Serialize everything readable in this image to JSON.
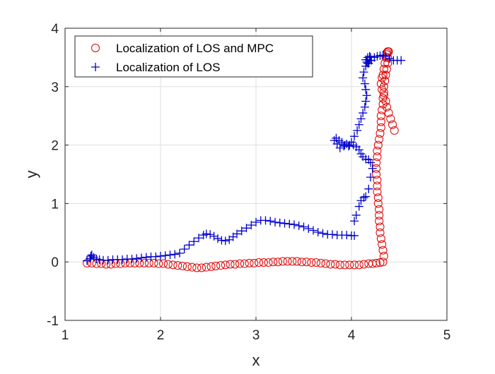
{
  "chart_data": {
    "type": "scatter",
    "title": "",
    "xlabel": "x",
    "ylabel": "y",
    "xlim": [
      1,
      5
    ],
    "ylim": [
      -1,
      4
    ],
    "xticks": [
      "1",
      "2",
      "3",
      "4",
      "5"
    ],
    "yticks": [
      "-1",
      "0",
      "1",
      "2",
      "3",
      "4"
    ],
    "grid": true,
    "legend_position": "top-left",
    "series": [
      {
        "name": "Localization of LOS and MPC",
        "marker": "circle",
        "color": "#e00000",
        "x": [
          1.23,
          1.28,
          1.33,
          1.38,
          1.43,
          1.48,
          1.53,
          1.58,
          1.63,
          1.68,
          1.73,
          1.78,
          1.83,
          1.88,
          1.93,
          1.98,
          2.03,
          2.08,
          2.13,
          2.18,
          2.23,
          2.28,
          2.33,
          2.38,
          2.43,
          2.48,
          2.53,
          2.58,
          2.63,
          2.68,
          2.73,
          2.78,
          2.83,
          2.88,
          2.93,
          2.98,
          3.03,
          3.08,
          3.13,
          3.18,
          3.23,
          3.28,
          3.33,
          3.38,
          3.43,
          3.48,
          3.53,
          3.58,
          3.63,
          3.68,
          3.73,
          3.78,
          3.83,
          3.88,
          3.93,
          3.98,
          4.03,
          4.08,
          4.13,
          4.18,
          4.22,
          4.26,
          4.3,
          4.33,
          4.34,
          4.33,
          4.32,
          4.31,
          4.3,
          4.3,
          4.29,
          4.29,
          4.29,
          4.28,
          4.28,
          4.27,
          4.27,
          4.27,
          4.26,
          4.26,
          4.26,
          4.27,
          4.27,
          4.28,
          4.29,
          4.3,
          4.31,
          4.31,
          4.31,
          4.32,
          4.33,
          4.33,
          4.34,
          4.34,
          4.35,
          4.36,
          4.37,
          4.38,
          4.38,
          4.39,
          4.38,
          4.37,
          4.37,
          4.36,
          4.35,
          4.34,
          4.33,
          4.32,
          4.31,
          4.32,
          4.34,
          4.36,
          4.37,
          4.39,
          4.41,
          4.43,
          4.45
        ],
        "y": [
          -0.02,
          -0.02,
          -0.03,
          -0.03,
          -0.04,
          -0.04,
          -0.03,
          -0.03,
          -0.02,
          -0.02,
          -0.02,
          -0.02,
          -0.02,
          -0.02,
          -0.02,
          -0.03,
          -0.03,
          -0.04,
          -0.05,
          -0.06,
          -0.07,
          -0.08,
          -0.09,
          -0.1,
          -0.1,
          -0.09,
          -0.08,
          -0.07,
          -0.06,
          -0.05,
          -0.04,
          -0.04,
          -0.03,
          -0.03,
          -0.02,
          -0.02,
          -0.01,
          -0.01,
          -0.01,
          0.0,
          0.0,
          0.01,
          0.01,
          0.01,
          0.01,
          0.0,
          0.0,
          -0.01,
          -0.01,
          -0.02,
          -0.03,
          -0.04,
          -0.04,
          -0.05,
          -0.05,
          -0.05,
          -0.05,
          -0.05,
          -0.04,
          -0.03,
          -0.03,
          -0.02,
          -0.01,
          0.0,
          0.1,
          0.2,
          0.3,
          0.4,
          0.5,
          0.6,
          0.7,
          0.8,
          0.9,
          1.0,
          1.1,
          1.2,
          1.3,
          1.4,
          1.5,
          1.6,
          1.7,
          1.8,
          1.9,
          2.0,
          2.1,
          2.2,
          2.3,
          2.4,
          2.5,
          2.6,
          2.7,
          2.8,
          2.9,
          3.0,
          3.1,
          3.2,
          3.3,
          3.4,
          3.5,
          3.6,
          3.6,
          3.58,
          3.55,
          3.5,
          3.4,
          3.3,
          3.2,
          3.15,
          3.05,
          2.95,
          2.85,
          2.75,
          2.65,
          2.55,
          2.45,
          2.35,
          2.25
        ]
      },
      {
        "name": "Localization of LOS",
        "marker": "plus",
        "color": "#0000cc",
        "x": [
          1.23,
          1.26,
          1.27,
          1.28,
          1.3,
          1.33,
          1.36,
          1.4,
          1.45,
          1.5,
          1.55,
          1.6,
          1.65,
          1.7,
          1.75,
          1.8,
          1.85,
          1.9,
          1.95,
          2.0,
          2.05,
          2.1,
          2.15,
          2.2,
          2.25,
          2.3,
          2.35,
          2.4,
          2.45,
          2.48,
          2.52,
          2.56,
          2.6,
          2.64,
          2.68,
          2.72,
          2.76,
          2.8,
          2.85,
          2.9,
          2.95,
          3.0,
          3.05,
          3.1,
          3.15,
          3.2,
          3.25,
          3.3,
          3.35,
          3.4,
          3.45,
          3.5,
          3.55,
          3.6,
          3.65,
          3.7,
          3.75,
          3.8,
          3.85,
          3.9,
          3.95,
          4.0,
          4.03,
          4.03,
          4.05,
          4.08,
          4.1,
          4.13,
          4.15,
          4.18,
          4.2,
          4.22,
          4.2,
          4.18,
          4.15,
          4.12,
          4.1,
          4.08,
          4.05,
          4.02,
          3.98,
          3.95,
          3.92,
          3.88,
          3.85,
          3.82,
          3.84,
          3.87,
          3.9,
          3.93,
          3.97,
          4.0,
          4.03,
          4.06,
          4.08,
          4.1,
          4.12,
          4.14,
          4.15,
          4.16,
          4.15,
          4.14,
          4.12,
          4.13,
          4.15,
          4.17,
          4.19,
          4.2,
          4.19,
          4.17,
          4.15,
          4.16,
          4.18,
          4.21,
          4.24,
          4.27,
          4.3,
          4.33,
          4.36,
          4.4,
          4.44,
          4.48,
          4.52
        ],
        "y": [
          0.02,
          0.06,
          0.1,
          0.12,
          0.08,
          0.05,
          0.04,
          0.03,
          0.03,
          0.04,
          0.04,
          0.04,
          0.05,
          0.05,
          0.06,
          0.07,
          0.08,
          0.09,
          0.09,
          0.1,
          0.11,
          0.12,
          0.13,
          0.15,
          0.22,
          0.29,
          0.35,
          0.41,
          0.46,
          0.48,
          0.47,
          0.44,
          0.4,
          0.37,
          0.36,
          0.38,
          0.43,
          0.48,
          0.53,
          0.58,
          0.63,
          0.68,
          0.71,
          0.71,
          0.7,
          0.68,
          0.67,
          0.66,
          0.65,
          0.64,
          0.62,
          0.6,
          0.57,
          0.54,
          0.51,
          0.49,
          0.47,
          0.47,
          0.46,
          0.46,
          0.46,
          0.45,
          0.45,
          0.7,
          0.8,
          0.95,
          1.05,
          1.1,
          1.12,
          1.25,
          1.45,
          1.6,
          1.7,
          1.75,
          1.76,
          1.8,
          1.85,
          1.92,
          1.97,
          2.0,
          2.0,
          2.02,
          1.98,
          1.95,
          2.02,
          2.08,
          2.12,
          2.08,
          2.05,
          2.0,
          1.98,
          2.05,
          2.15,
          2.25,
          2.35,
          2.45,
          2.55,
          2.65,
          2.75,
          2.85,
          2.95,
          3.05,
          3.15,
          3.25,
          3.35,
          3.4,
          3.45,
          3.5,
          3.52,
          3.5,
          3.46,
          3.42,
          3.4,
          3.45,
          3.5,
          3.52,
          3.53,
          3.54,
          3.52,
          3.48,
          3.45,
          3.45,
          3.45
        ]
      }
    ]
  }
}
